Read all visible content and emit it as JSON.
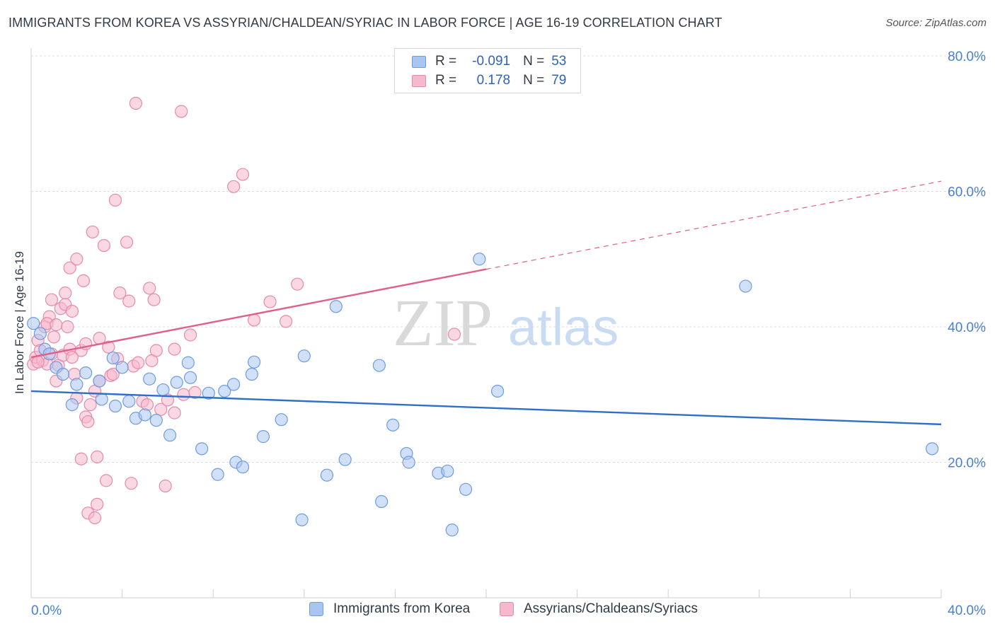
{
  "title": "IMMIGRANTS FROM KOREA VS ASSYRIAN/CHALDEAN/SYRIAC IN LABOR FORCE | AGE 16-19 CORRELATION CHART",
  "source": "Source: ZipAtlas.com",
  "watermark": {
    "zip": "ZIP",
    "atlas": "atlas"
  },
  "colors": {
    "blue_fill": "#aac6f0",
    "blue_stroke": "#6f9be0",
    "blue_line": "#2f6fcc",
    "pink_fill": "#f6b8cc",
    "pink_stroke": "#e78aa8",
    "pink_line": "#e0608a",
    "tick_text": "#4a7fd0",
    "grid": "#dcdcdc"
  },
  "legend": {
    "rows": [
      {
        "r_label": "R =",
        "r_value": "-0.091",
        "n_label": "N =",
        "n_value": "53"
      },
      {
        "r_label": "R =",
        "r_value": "0.178",
        "n_label": "N =",
        "n_value": "79"
      }
    ]
  },
  "chart_data": {
    "type": "scatter",
    "title": "IMMIGRANTS FROM KOREA VS ASSYRIAN/CHALDEAN/SYRIAC IN LABOR FORCE | AGE 16-19 CORRELATION CHART",
    "xlabel": "",
    "ylabel": "In Labor Force | Age 16-19",
    "xlim": [
      0,
      40
    ],
    "ylim": [
      0,
      80
    ],
    "x_tick_labels": [
      "0.0%",
      "40.0%"
    ],
    "y_ticks": [
      20,
      40,
      60,
      80
    ],
    "y_tick_labels": [
      "20.0%",
      "40.0%",
      "60.0%",
      "80.0%"
    ],
    "grid": true,
    "series": [
      {
        "name": "Immigrants from Korea",
        "color": "blue",
        "r": -0.091,
        "n": 53,
        "trend": {
          "x0": 0,
          "y0": 30.5,
          "x1": 40,
          "y1": 25.6,
          "solid_until": 40
        },
        "points": [
          [
            0.1,
            40.5
          ],
          [
            0.6,
            36.7
          ],
          [
            0.8,
            36.0
          ],
          [
            1.1,
            34.0
          ],
          [
            1.4,
            33.0
          ],
          [
            1.8,
            28.5
          ],
          [
            2.0,
            31.5
          ],
          [
            2.4,
            33.2
          ],
          [
            3.6,
            35.4
          ],
          [
            3.0,
            32.0
          ],
          [
            3.1,
            29.3
          ],
          [
            3.7,
            28.3
          ],
          [
            4.0,
            34.0
          ],
          [
            4.3,
            29.0
          ],
          [
            4.6,
            26.5
          ],
          [
            5.0,
            27.0
          ],
          [
            5.2,
            32.3
          ],
          [
            5.5,
            26.2
          ],
          [
            5.8,
            30.7
          ],
          [
            6.1,
            24.0
          ],
          [
            6.4,
            31.8
          ],
          [
            6.9,
            34.7
          ],
          [
            7.0,
            32.5
          ],
          [
            7.5,
            22.0
          ],
          [
            7.8,
            30.2
          ],
          [
            8.2,
            18.2
          ],
          [
            8.5,
            30.5
          ],
          [
            8.9,
            31.5
          ],
          [
            9.0,
            20.0
          ],
          [
            9.3,
            19.3
          ],
          [
            9.7,
            33.0
          ],
          [
            9.8,
            34.8
          ],
          [
            10.2,
            23.8
          ],
          [
            11.0,
            26.3
          ],
          [
            11.9,
            11.5
          ],
          [
            12.0,
            35.7
          ],
          [
            13.0,
            18.1
          ],
          [
            13.4,
            43.0
          ],
          [
            13.8,
            20.4
          ],
          [
            15.3,
            34.3
          ],
          [
            15.4,
            14.2
          ],
          [
            15.9,
            25.5
          ],
          [
            16.5,
            21.3
          ],
          [
            16.6,
            20.0
          ],
          [
            17.9,
            18.4
          ],
          [
            18.3,
            18.7
          ],
          [
            18.5,
            10.0
          ],
          [
            19.1,
            16.0
          ],
          [
            19.7,
            50.0
          ],
          [
            20.5,
            30.5
          ],
          [
            31.4,
            46.0
          ],
          [
            39.6,
            22.0
          ],
          [
            0.4,
            39.0
          ]
        ]
      },
      {
        "name": "Assyrians/Chaldeans/Syriacs",
        "color": "pink",
        "r": 0.178,
        "n": 79,
        "trend": {
          "x0": 0,
          "y0": 35.5,
          "x1": 40,
          "y1": 61.5,
          "solid_until": 20
        },
        "points": [
          [
            0.1,
            34.5
          ],
          [
            0.2,
            35.5
          ],
          [
            0.3,
            38.0
          ],
          [
            0.4,
            36.5
          ],
          [
            0.5,
            35.0
          ],
          [
            0.6,
            40.0
          ],
          [
            0.7,
            34.5
          ],
          [
            0.8,
            41.5
          ],
          [
            0.9,
            36.0
          ],
          [
            1.0,
            38.5
          ],
          [
            0.7,
            40.5
          ],
          [
            0.9,
            44.0
          ],
          [
            1.1,
            32.0
          ],
          [
            1.1,
            40.3
          ],
          [
            1.2,
            34.3
          ],
          [
            1.3,
            42.7
          ],
          [
            1.4,
            35.8
          ],
          [
            1.5,
            43.3
          ],
          [
            1.6,
            40.0
          ],
          [
            1.7,
            36.7
          ],
          [
            1.8,
            42.3
          ],
          [
            1.5,
            45.0
          ],
          [
            1.7,
            48.7
          ],
          [
            1.9,
            33.0
          ],
          [
            2.0,
            29.5
          ],
          [
            2.0,
            50.0
          ],
          [
            2.2,
            36.5
          ],
          [
            2.3,
            46.8
          ],
          [
            2.2,
            20.5
          ],
          [
            2.4,
            26.7
          ],
          [
            2.4,
            37.5
          ],
          [
            2.5,
            26.0
          ],
          [
            2.6,
            28.5
          ],
          [
            2.5,
            12.5
          ],
          [
            2.7,
            54.0
          ],
          [
            2.8,
            11.8
          ],
          [
            2.8,
            30.5
          ],
          [
            2.9,
            13.8
          ],
          [
            2.9,
            20.8
          ],
          [
            3.0,
            38.3
          ],
          [
            3.0,
            32.0
          ],
          [
            3.2,
            52.0
          ],
          [
            3.3,
            17.3
          ],
          [
            3.4,
            37.0
          ],
          [
            3.5,
            32.8
          ],
          [
            3.6,
            33.0
          ],
          [
            3.7,
            58.7
          ],
          [
            3.8,
            35.3
          ],
          [
            3.9,
            45.0
          ],
          [
            4.2,
            52.5
          ],
          [
            4.3,
            43.8
          ],
          [
            4.4,
            16.9
          ],
          [
            4.5,
            34.2
          ],
          [
            4.6,
            73.0
          ],
          [
            4.7,
            34.7
          ],
          [
            4.9,
            29.0
          ],
          [
            5.1,
            28.5
          ],
          [
            5.3,
            35.0
          ],
          [
            5.4,
            44.0
          ],
          [
            5.5,
            36.5
          ],
          [
            5.7,
            27.8
          ],
          [
            5.9,
            16.5
          ],
          [
            6.0,
            29.2
          ],
          [
            6.3,
            36.7
          ],
          [
            6.3,
            27.3
          ],
          [
            6.6,
            71.8
          ],
          [
            6.7,
            30.0
          ],
          [
            7.0,
            38.8
          ],
          [
            7.2,
            30.3
          ],
          [
            8.9,
            60.7
          ],
          [
            9.3,
            62.5
          ],
          [
            9.8,
            41.0
          ],
          [
            10.5,
            43.7
          ],
          [
            11.2,
            40.8
          ],
          [
            11.7,
            46.3
          ],
          [
            5.2,
            45.7
          ],
          [
            18.6,
            38.9
          ],
          [
            1.8,
            35.5
          ],
          [
            0.3,
            34.8
          ]
        ]
      }
    ]
  }
}
